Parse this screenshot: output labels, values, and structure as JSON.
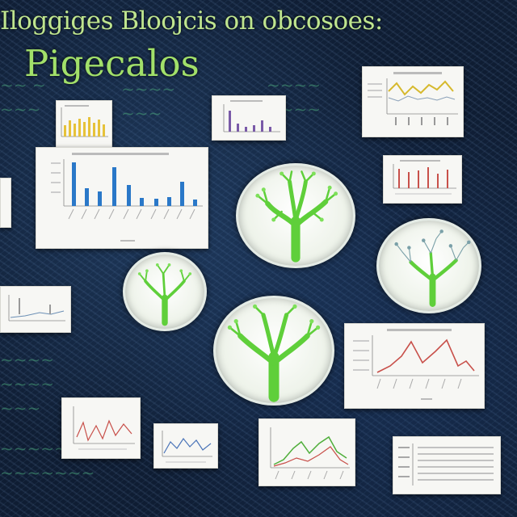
{
  "header": {
    "title": "Iloggiges Bloojcis on obcosoes:",
    "subtitle": "Pigecalos"
  },
  "colors": {
    "background": "#0f1d33",
    "title": "#bfe58f",
    "tree": "#5fcf3a",
    "bar": "#2a78c8",
    "line": "#c8504a"
  },
  "icons": [
    "tree-icon"
  ]
}
